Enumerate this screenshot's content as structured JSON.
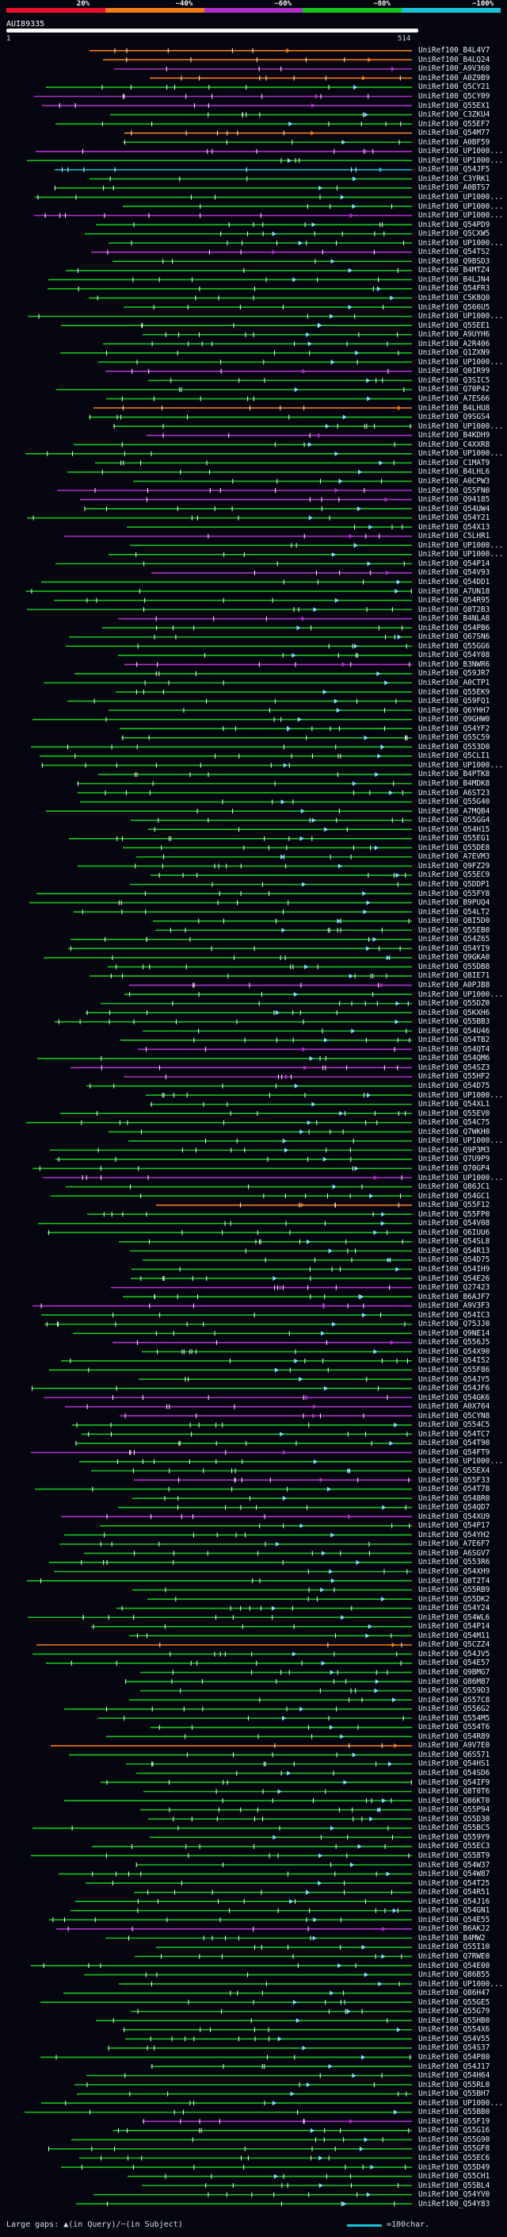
{
  "legend": {
    "labels": [
      "20%",
      "~40%",
      "~60%",
      "~80%",
      "~100%"
    ],
    "colors": [
      "#e8102a",
      "#f07a18",
      "#b02fc9",
      "#16c21e",
      "#19c3d6"
    ]
  },
  "query": {
    "id": "AUI89335",
    "start": "1",
    "end": "514"
  },
  "hits": [
    {
      "id": "UniRef100_B4L4V7",
      "color": "#f07a18"
    },
    {
      "id": "UniRef100_B4LQ24",
      "color": "#f07a18"
    },
    {
      "id": "UniRef100_A9V360",
      "color": "#b02fc9"
    },
    {
      "id": "UniRef100_A0Z9B9",
      "color": "#f07a18"
    },
    {
      "id": "UniRef100_Q5CY21",
      "color": "#16c21e"
    },
    {
      "id": "UniRef100_Q5CY09",
      "color": "#b02fc9"
    },
    {
      "id": "UniRef100_Q55EX1",
      "color": "#b02fc9"
    },
    {
      "id": "UniRef100_C3ZKU4",
      "color": "#16c21e"
    },
    {
      "id": "UniRef100_Q55EF7",
      "color": "#16c21e"
    },
    {
      "id": "UniRef100_Q54M77",
      "color": "#f07a18"
    },
    {
      "id": "UniRef100_A0BF59",
      "color": "#16c21e"
    },
    {
      "id": "UniRef100_UP1000...",
      "color": "#b02fc9"
    },
    {
      "id": "UniRef100_UP1000...",
      "color": "#16c21e"
    },
    {
      "id": "UniRef100_Q54JF5",
      "color": "#19c3d6"
    },
    {
      "id": "UniRef100_C3YRK1",
      "color": "#16c21e"
    },
    {
      "id": "UniRef100_A0BTS7",
      "color": "#16c21e"
    },
    {
      "id": "UniRef100_UP1000...",
      "color": "#16c21e"
    },
    {
      "id": "UniRef100_UP1000...",
      "color": "#16c21e"
    },
    {
      "id": "UniRef100_UP1000...",
      "color": "#b02fc9"
    },
    {
      "id": "UniRef100_Q54PD9",
      "color": "#16c21e"
    },
    {
      "id": "UniRef100_Q5CXW5",
      "color": "#16c21e"
    },
    {
      "id": "UniRef100_UP1000...",
      "color": "#16c21e"
    },
    {
      "id": "UniRef100_Q54TS2",
      "color": "#b02fc9"
    },
    {
      "id": "UniRef100_Q9BSD3",
      "color": "#16c21e"
    },
    {
      "id": "UniRef100_B4MTZ4",
      "color": "#16c21e"
    },
    {
      "id": "UniRef100_B4LJN4",
      "color": "#16c21e"
    },
    {
      "id": "UniRef100_Q54FR3",
      "color": "#16c21e"
    },
    {
      "id": "UniRef100_C5K8Q0",
      "color": "#16c21e"
    },
    {
      "id": "UniRef100_Q566U5",
      "color": "#16c21e"
    },
    {
      "id": "UniRef100_UP1000...",
      "color": "#16c21e"
    },
    {
      "id": "UniRef100_Q55EE1",
      "color": "#16c21e"
    },
    {
      "id": "UniRef100_A9UYH6",
      "color": "#16c21e"
    },
    {
      "id": "UniRef100_A2R406",
      "color": "#16c21e"
    },
    {
      "id": "UniRef100_Q1ZXN9",
      "color": "#16c21e"
    },
    {
      "id": "UniRef100_UP1000...",
      "color": "#16c21e"
    },
    {
      "id": "UniRef100_Q0IR99",
      "color": "#b02fc9"
    },
    {
      "id": "UniRef100_Q3SIC5",
      "color": "#16c21e"
    },
    {
      "id": "UniRef100_Q70P42",
      "color": "#16c21e"
    },
    {
      "id": "UniRef100_A7ES66",
      "color": "#16c21e"
    },
    {
      "id": "UniRef100_B4LHU8",
      "color": "#f07a18"
    },
    {
      "id": "UniRef100_Q9SGS4",
      "color": "#16c21e"
    },
    {
      "id": "UniRef100_UP1000...",
      "color": "#16c21e"
    },
    {
      "id": "UniRef100_B4KDH9",
      "color": "#b02fc9"
    },
    {
      "id": "UniRef100_C4XXR8",
      "color": "#16c21e"
    },
    {
      "id": "UniRef100_UP1000...",
      "color": "#16c21e"
    },
    {
      "id": "UniRef100_C1MAT9",
      "color": "#16c21e"
    },
    {
      "id": "UniRef100_B4LHL6",
      "color": "#16c21e"
    },
    {
      "id": "UniRef100_A0CPW3",
      "color": "#16c21e"
    },
    {
      "id": "UniRef100_Q55FN0",
      "color": "#b02fc9"
    },
    {
      "id": "UniRef100_Q94185",
      "color": "#b02fc9"
    },
    {
      "id": "UniRef100_Q54UW4",
      "color": "#16c21e"
    },
    {
      "id": "UniRef100_Q54Y21",
      "color": "#16c21e"
    },
    {
      "id": "UniRef100_Q54X13",
      "color": "#16c21e"
    },
    {
      "id": "UniRef100_C5LHR1",
      "color": "#b02fc9"
    },
    {
      "id": "UniRef100_UP1000...",
      "color": "#16c21e"
    },
    {
      "id": "UniRef100_UP1000...",
      "color": "#16c21e"
    },
    {
      "id": "UniRef100_Q54P14",
      "color": "#16c21e"
    },
    {
      "id": "UniRef100_Q54V93",
      "color": "#b02fc9"
    },
    {
      "id": "UniRef100_Q54DD1",
      "color": "#16c21e"
    },
    {
      "id": "UniRef100_A7UN18",
      "color": "#16c21e"
    },
    {
      "id": "UniRef100_Q54R95",
      "color": "#16c21e"
    },
    {
      "id": "UniRef100_Q8T2B3",
      "color": "#16c21e"
    },
    {
      "id": "UniRef100_B4NLA8",
      "color": "#b02fc9"
    },
    {
      "id": "UniRef100_Q54PB6",
      "color": "#16c21e"
    },
    {
      "id": "UniRef100_Q67SN6",
      "color": "#16c21e"
    },
    {
      "id": "UniRef100_Q55GG6",
      "color": "#16c21e"
    },
    {
      "id": "UniRef100_Q54Y08",
      "color": "#16c21e"
    },
    {
      "id": "UniRef100_B3NWR6",
      "color": "#b02fc9"
    },
    {
      "id": "UniRef100_Q59JR7",
      "color": "#16c21e"
    },
    {
      "id": "UniRef100_A0CTP1",
      "color": "#16c21e"
    },
    {
      "id": "UniRef100_Q55EK9",
      "color": "#16c21e"
    },
    {
      "id": "UniRef100_Q59FQ1",
      "color": "#16c21e"
    },
    {
      "id": "UniRef100_Q6YHH7",
      "color": "#16c21e"
    },
    {
      "id": "UniRef100_Q9GHW0",
      "color": "#16c21e"
    },
    {
      "id": "UniRef100_Q54YF2",
      "color": "#16c21e"
    },
    {
      "id": "UniRef100_Q55C59",
      "color": "#16c21e"
    },
    {
      "id": "UniRef100_Q553D0",
      "color": "#16c21e"
    },
    {
      "id": "UniRef100_Q5CLI1",
      "color": "#16c21e"
    },
    {
      "id": "UniRef100_UP1000...",
      "color": "#16c21e"
    },
    {
      "id": "UniRef100_B4PTK8",
      "color": "#16c21e"
    },
    {
      "id": "UniRef100_B4MDK8",
      "color": "#16c21e"
    },
    {
      "id": "UniRef100_A6ST23",
      "color": "#16c21e"
    },
    {
      "id": "UniRef100_Q55G40",
      "color": "#16c21e"
    },
    {
      "id": "UniRef100_A7MQB4",
      "color": "#16c21e"
    },
    {
      "id": "UniRef100_Q55GG4",
      "color": "#16c21e"
    },
    {
      "id": "UniRef100_Q54H15",
      "color": "#16c21e"
    },
    {
      "id": "UniRef100_Q55EG1",
      "color": "#16c21e"
    },
    {
      "id": "UniRef100_Q55DE8",
      "color": "#16c21e"
    },
    {
      "id": "UniRef100_A7EVM3",
      "color": "#16c21e"
    },
    {
      "id": "UniRef100_Q9FZ29",
      "color": "#16c21e"
    },
    {
      "id": "UniRef100_Q55EC9",
      "color": "#16c21e"
    },
    {
      "id": "UniRef100_Q5DDP1",
      "color": "#16c21e"
    },
    {
      "id": "UniRef100_Q55FY8",
      "color": "#16c21e"
    },
    {
      "id": "UniRef100_B9PUQ4",
      "color": "#16c21e"
    },
    {
      "id": "UniRef100_Q54LT2",
      "color": "#16c21e"
    },
    {
      "id": "UniRef100_Q8I5D0",
      "color": "#16c21e"
    },
    {
      "id": "UniRef100_Q55EB0",
      "color": "#16c21e"
    },
    {
      "id": "UniRef100_Q54Z65",
      "color": "#16c21e"
    },
    {
      "id": "UniRef100_Q54YI9",
      "color": "#16c21e"
    },
    {
      "id": "UniRef100_Q9GKA0",
      "color": "#16c21e"
    },
    {
      "id": "UniRef100_Q55DB8",
      "color": "#16c21e"
    },
    {
      "id": "UniRef100_Q8IE71",
      "color": "#16c21e"
    },
    {
      "id": "UniRef100_A0PJB8",
      "color": "#b02fc9"
    },
    {
      "id": "UniRef100_UP1000...",
      "color": "#16c21e"
    },
    {
      "id": "UniRef100_Q55DZ0",
      "color": "#16c21e"
    },
    {
      "id": "UniRef100_Q5KXH6",
      "color": "#16c21e"
    },
    {
      "id": "UniRef100_Q55BB3",
      "color": "#16c21e"
    },
    {
      "id": "UniRef100_Q54U46",
      "color": "#16c21e"
    },
    {
      "id": "UniRef100_Q54TB2",
      "color": "#16c21e"
    },
    {
      "id": "UniRef100_Q54QT4",
      "color": "#b02fc9"
    },
    {
      "id": "UniRef100_Q54QM6",
      "color": "#16c21e"
    },
    {
      "id": "UniRef100_Q54SZ3",
      "color": "#b02fc9"
    },
    {
      "id": "UniRef100_Q55HF2",
      "color": "#b02fc9"
    },
    {
      "id": "UniRef100_Q54D75",
      "color": "#16c21e"
    },
    {
      "id": "UniRef100_UP1000...",
      "color": "#16c21e"
    },
    {
      "id": "UniRef100_Q54XL1",
      "color": "#16c21e"
    },
    {
      "id": "UniRef100_Q55EV0",
      "color": "#16c21e"
    },
    {
      "id": "UniRef100_Q54C75",
      "color": "#16c21e"
    },
    {
      "id": "UniRef100_Q7WKH0",
      "color": "#16c21e"
    },
    {
      "id": "UniRef100_UP1000...",
      "color": "#16c21e"
    },
    {
      "id": "UniRef100_Q9P3M3",
      "color": "#16c21e"
    },
    {
      "id": "UniRef100_Q7U9P9",
      "color": "#16c21e"
    },
    {
      "id": "UniRef100_Q70GP4",
      "color": "#16c21e"
    },
    {
      "id": "UniRef100_UP1000...",
      "color": "#b02fc9"
    },
    {
      "id": "UniRef100_Q86JC1",
      "color": "#16c21e"
    },
    {
      "id": "UniRef100_Q54GC1",
      "color": "#16c21e"
    },
    {
      "id": "UniRef100_Q55F12",
      "color": "#f07a18"
    },
    {
      "id": "UniRef100_Q55FP0",
      "color": "#16c21e"
    },
    {
      "id": "UniRef100_Q54V08",
      "color": "#16c21e"
    },
    {
      "id": "UniRef100_Q6IUU6",
      "color": "#16c21e"
    },
    {
      "id": "UniRef100_Q54SL8",
      "color": "#16c21e"
    },
    {
      "id": "UniRef100_Q54R13",
      "color": "#16c21e"
    },
    {
      "id": "UniRef100_Q54D75",
      "color": "#16c21e"
    },
    {
      "id": "UniRef100_Q54IH9",
      "color": "#16c21e"
    },
    {
      "id": "UniRef100_Q54E26",
      "color": "#16c21e"
    },
    {
      "id": "UniRef100_Q27423",
      "color": "#b02fc9"
    },
    {
      "id": "UniRef100_B6AJF7",
      "color": "#16c21e"
    },
    {
      "id": "UniRef100_A9V3F3",
      "color": "#b02fc9"
    },
    {
      "id": "UniRef100_Q54IC3",
      "color": "#16c21e"
    },
    {
      "id": "UniRef100_Q75JJ0",
      "color": "#16c21e"
    },
    {
      "id": "UniRef100_Q9NE14",
      "color": "#16c21e"
    },
    {
      "id": "UniRef100_Q556J5",
      "color": "#b02fc9"
    },
    {
      "id": "UniRef100_Q54X90",
      "color": "#16c21e"
    },
    {
      "id": "UniRef100_Q54I52",
      "color": "#16c21e"
    },
    {
      "id": "UniRef100_Q55F86",
      "color": "#16c21e"
    },
    {
      "id": "UniRef100_Q54JY5",
      "color": "#16c21e"
    },
    {
      "id": "UniRef100_Q54JF6",
      "color": "#16c21e"
    },
    {
      "id": "UniRef100_Q54GK6",
      "color": "#b02fc9"
    },
    {
      "id": "UniRef100_A0X764",
      "color": "#b02fc9"
    },
    {
      "id": "UniRef100_Q5CYN8",
      "color": "#b02fc9"
    },
    {
      "id": "UniRef100_Q554C5",
      "color": "#16c21e"
    },
    {
      "id": "UniRef100_Q54TC7",
      "color": "#16c21e"
    },
    {
      "id": "UniRef100_Q54T90",
      "color": "#16c21e"
    },
    {
      "id": "UniRef100_Q54FT9",
      "color": "#b02fc9"
    },
    {
      "id": "UniRef100_UP1000...",
      "color": "#16c21e"
    },
    {
      "id": "UniRef100_Q55EX4",
      "color": "#16c21e"
    },
    {
      "id": "UniRef100_Q55F33",
      "color": "#b02fc9"
    },
    {
      "id": "UniRef100_Q54T78",
      "color": "#16c21e"
    },
    {
      "id": "UniRef100_Q548R0",
      "color": "#16c21e"
    },
    {
      "id": "UniRef100_Q54QD7",
      "color": "#16c21e"
    },
    {
      "id": "UniRef100_Q54XU9",
      "color": "#b02fc9"
    },
    {
      "id": "UniRef100_Q54P17",
      "color": "#16c21e"
    },
    {
      "id": "UniRef100_Q54YH2",
      "color": "#16c21e"
    },
    {
      "id": "UniRef100_A7E6F7",
      "color": "#16c21e"
    },
    {
      "id": "UniRef100_A6SGV7",
      "color": "#16c21e"
    },
    {
      "id": "UniRef100_Q553R6",
      "color": "#16c21e"
    },
    {
      "id": "UniRef100_Q54XH9",
      "color": "#16c21e"
    },
    {
      "id": "UniRef100_Q8T2T4",
      "color": "#16c21e"
    },
    {
      "id": "UniRef100_Q55RB9",
      "color": "#16c21e"
    },
    {
      "id": "UniRef100_Q55DK2",
      "color": "#16c21e"
    },
    {
      "id": "UniRef100_Q54Y24",
      "color": "#16c21e"
    },
    {
      "id": "UniRef100_Q54WL6",
      "color": "#16c21e"
    },
    {
      "id": "UniRef100_Q54P14",
      "color": "#16c21e"
    },
    {
      "id": "UniRef100_Q54M11",
      "color": "#16c21e"
    },
    {
      "id": "UniRef100_Q5CZZ4",
      "color": "#f07a18"
    },
    {
      "id": "UniRef100_Q54JV5",
      "color": "#16c21e"
    },
    {
      "id": "UniRef100_Q54E57",
      "color": "#16c21e"
    },
    {
      "id": "UniRef100_Q9BMG7",
      "color": "#16c21e"
    },
    {
      "id": "UniRef100_Q86M87",
      "color": "#16c21e"
    },
    {
      "id": "UniRef100_Q559D3",
      "color": "#16c21e"
    },
    {
      "id": "UniRef100_Q557C8",
      "color": "#16c21e"
    },
    {
      "id": "UniRef100_Q556G2",
      "color": "#16c21e"
    },
    {
      "id": "UniRef100_Q554M5",
      "color": "#16c21e"
    },
    {
      "id": "UniRef100_Q554T6",
      "color": "#16c21e"
    },
    {
      "id": "UniRef100_Q54R89",
      "color": "#16c21e"
    },
    {
      "id": "UniRef100_A9V7E0",
      "color": "#f07a18"
    },
    {
      "id": "UniRef100_Q6S571",
      "color": "#16c21e"
    },
    {
      "id": "UniRef100_Q54HS1",
      "color": "#16c21e"
    },
    {
      "id": "UniRef100_Q54SD6",
      "color": "#16c21e"
    },
    {
      "id": "UniRef100_Q54IF9",
      "color": "#16c21e"
    },
    {
      "id": "UniRef100_Q8T0T6",
      "color": "#16c21e"
    },
    {
      "id": "UniRef100_Q86KT0",
      "color": "#16c21e"
    },
    {
      "id": "UniRef100_Q55P94",
      "color": "#16c21e"
    },
    {
      "id": "UniRef100_Q55D30",
      "color": "#16c21e"
    },
    {
      "id": "UniRef100_Q55BC5",
      "color": "#16c21e"
    },
    {
      "id": "UniRef100_Q559Y9",
      "color": "#16c21e"
    },
    {
      "id": "UniRef100_Q55EC3",
      "color": "#16c21e"
    },
    {
      "id": "UniRef100_Q558T9",
      "color": "#16c21e"
    },
    {
      "id": "UniRef100_Q54W37",
      "color": "#16c21e"
    },
    {
      "id": "UniRef100_Q54W87",
      "color": "#16c21e"
    },
    {
      "id": "UniRef100_Q54T25",
      "color": "#16c21e"
    },
    {
      "id": "UniRef100_Q54R51",
      "color": "#16c21e"
    },
    {
      "id": "UniRef100_Q54J16",
      "color": "#16c21e"
    },
    {
      "id": "UniRef100_Q54GN1",
      "color": "#16c21e"
    },
    {
      "id": "UniRef100_Q54E55",
      "color": "#16c21e"
    },
    {
      "id": "UniRef100_B6AKJ2",
      "color": "#b02fc9"
    },
    {
      "id": "UniRef100_B4MW2",
      "color": "#16c21e"
    },
    {
      "id": "UniRef100_Q55I10",
      "color": "#16c21e"
    },
    {
      "id": "UniRef100_Q7RWE0",
      "color": "#16c21e"
    },
    {
      "id": "UniRef100_Q54E00",
      "color": "#16c21e"
    },
    {
      "id": "UniRef100_Q86B55",
      "color": "#16c21e"
    },
    {
      "id": "UniRef100_UP1000...",
      "color": "#16c21e"
    },
    {
      "id": "UniRef100_Q86H47",
      "color": "#16c21e"
    },
    {
      "id": "UniRef100_Q55GE5",
      "color": "#16c21e"
    },
    {
      "id": "UniRef100_Q55G79",
      "color": "#16c21e"
    },
    {
      "id": "UniRef100_Q55HB0",
      "color": "#16c21e"
    },
    {
      "id": "UniRef100_Q554X6",
      "color": "#16c21e"
    },
    {
      "id": "UniRef100_Q54V55",
      "color": "#16c21e"
    },
    {
      "id": "UniRef100_Q54S37",
      "color": "#16c21e"
    },
    {
      "id": "UniRef100_Q54P80",
      "color": "#16c21e"
    },
    {
      "id": "UniRef100_Q54J17",
      "color": "#16c21e"
    },
    {
      "id": "UniRef100_Q54H64",
      "color": "#16c21e"
    },
    {
      "id": "UniRef100_Q55RL0",
      "color": "#16c21e"
    },
    {
      "id": "UniRef100_Q55BH7",
      "color": "#16c21e"
    },
    {
      "id": "UniRef100_UP1000...",
      "color": "#16c21e"
    },
    {
      "id": "UniRef100_Q55BB0",
      "color": "#16c21e"
    },
    {
      "id": "UniRef100_Q55F19",
      "color": "#b02fc9"
    },
    {
      "id": "UniRef100_Q55G16",
      "color": "#16c21e"
    },
    {
      "id": "UniRef100_Q55G90",
      "color": "#16c21e"
    },
    {
      "id": "UniRef100_Q55GF8",
      "color": "#16c21e"
    },
    {
      "id": "UniRef100_Q55EC6",
      "color": "#16c21e"
    },
    {
      "id": "UniRef100_Q55D49",
      "color": "#16c21e"
    },
    {
      "id": "UniRef100_Q55CH1",
      "color": "#16c21e"
    },
    {
      "id": "UniRef100_Q55BL4",
      "color": "#16c21e"
    },
    {
      "id": "UniRef100_Q54YV0",
      "color": "#16c21e"
    },
    {
      "id": "UniRef100_Q54Y83",
      "color": "#16c21e"
    }
  ],
  "footer": {
    "gap_note": "Large gaps: ▲(in Query)/╌(in Subject)",
    "scale_note": "=100char.",
    "scale_color": "#19c3d6"
  }
}
